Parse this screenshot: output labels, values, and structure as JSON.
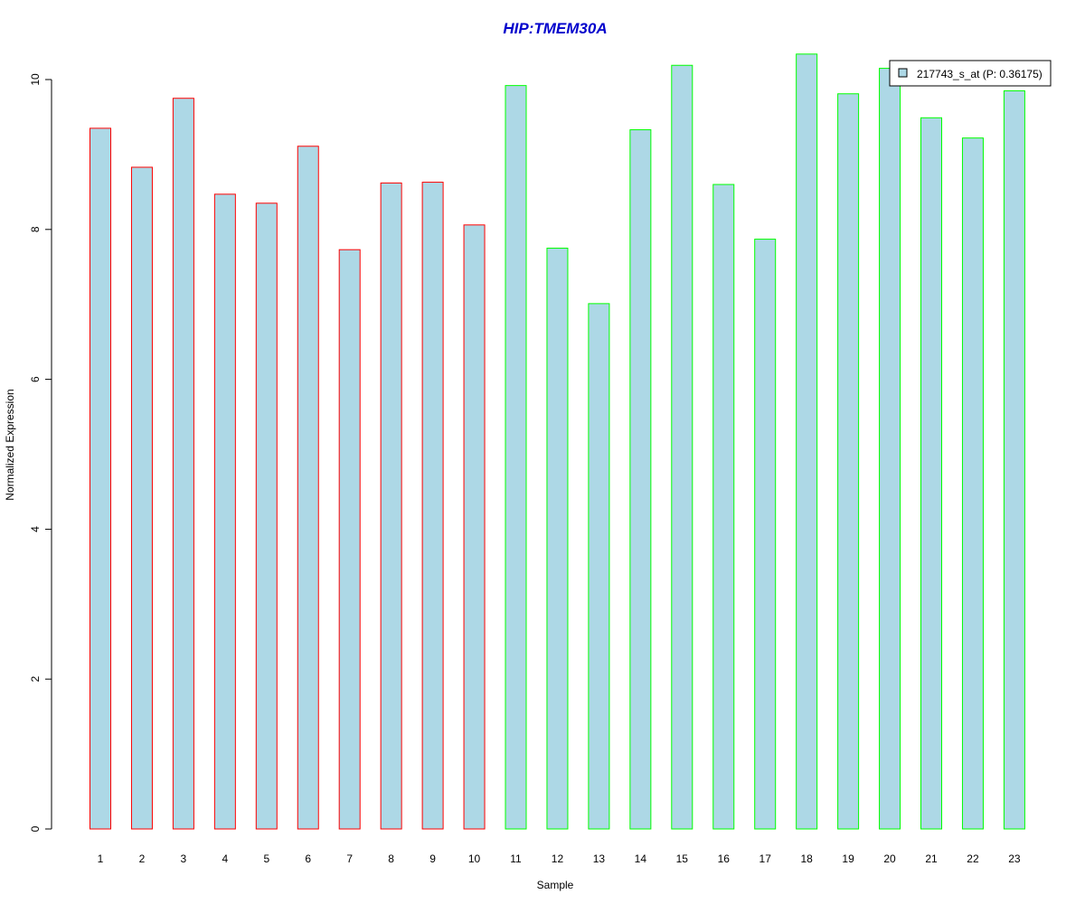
{
  "chart_data": {
    "type": "bar",
    "title": "HIP:TMEM30A",
    "xlabel": "Sample",
    "ylabel": "Normalized Expression",
    "categories": [
      "1",
      "2",
      "3",
      "4",
      "5",
      "6",
      "7",
      "8",
      "9",
      "10",
      "11",
      "12",
      "13",
      "14",
      "15",
      "16",
      "17",
      "18",
      "19",
      "20",
      "21",
      "22",
      "23"
    ],
    "series": [
      {
        "name": "217743_s_at (P: 0.36175)",
        "values": [
          9.35,
          8.83,
          9.75,
          8.47,
          8.35,
          9.11,
          7.73,
          8.62,
          8.63,
          8.06,
          9.92,
          7.75,
          7.01,
          9.33,
          10.19,
          8.6,
          7.87,
          10.34,
          9.81,
          10.15,
          9.49,
          9.22,
          9.85
        ]
      }
    ],
    "group_edge_colors": [
      "#ff0000",
      "#ff0000",
      "#ff0000",
      "#ff0000",
      "#ff0000",
      "#ff0000",
      "#ff0000",
      "#ff0000",
      "#ff0000",
      "#ff0000",
      "#00ff00",
      "#00ff00",
      "#00ff00",
      "#00ff00",
      "#00ff00",
      "#00ff00",
      "#00ff00",
      "#00ff00",
      "#00ff00",
      "#00ff00",
      "#00ff00",
      "#00ff00",
      "#00ff00"
    ],
    "yticks": [
      "0",
      "2",
      "4",
      "6",
      "8",
      "10"
    ],
    "ylim": [
      0,
      10.5
    ],
    "bar_fill": "#add8e6",
    "title_color": "#0000cc",
    "legend_position": "top-right",
    "grid": false
  }
}
